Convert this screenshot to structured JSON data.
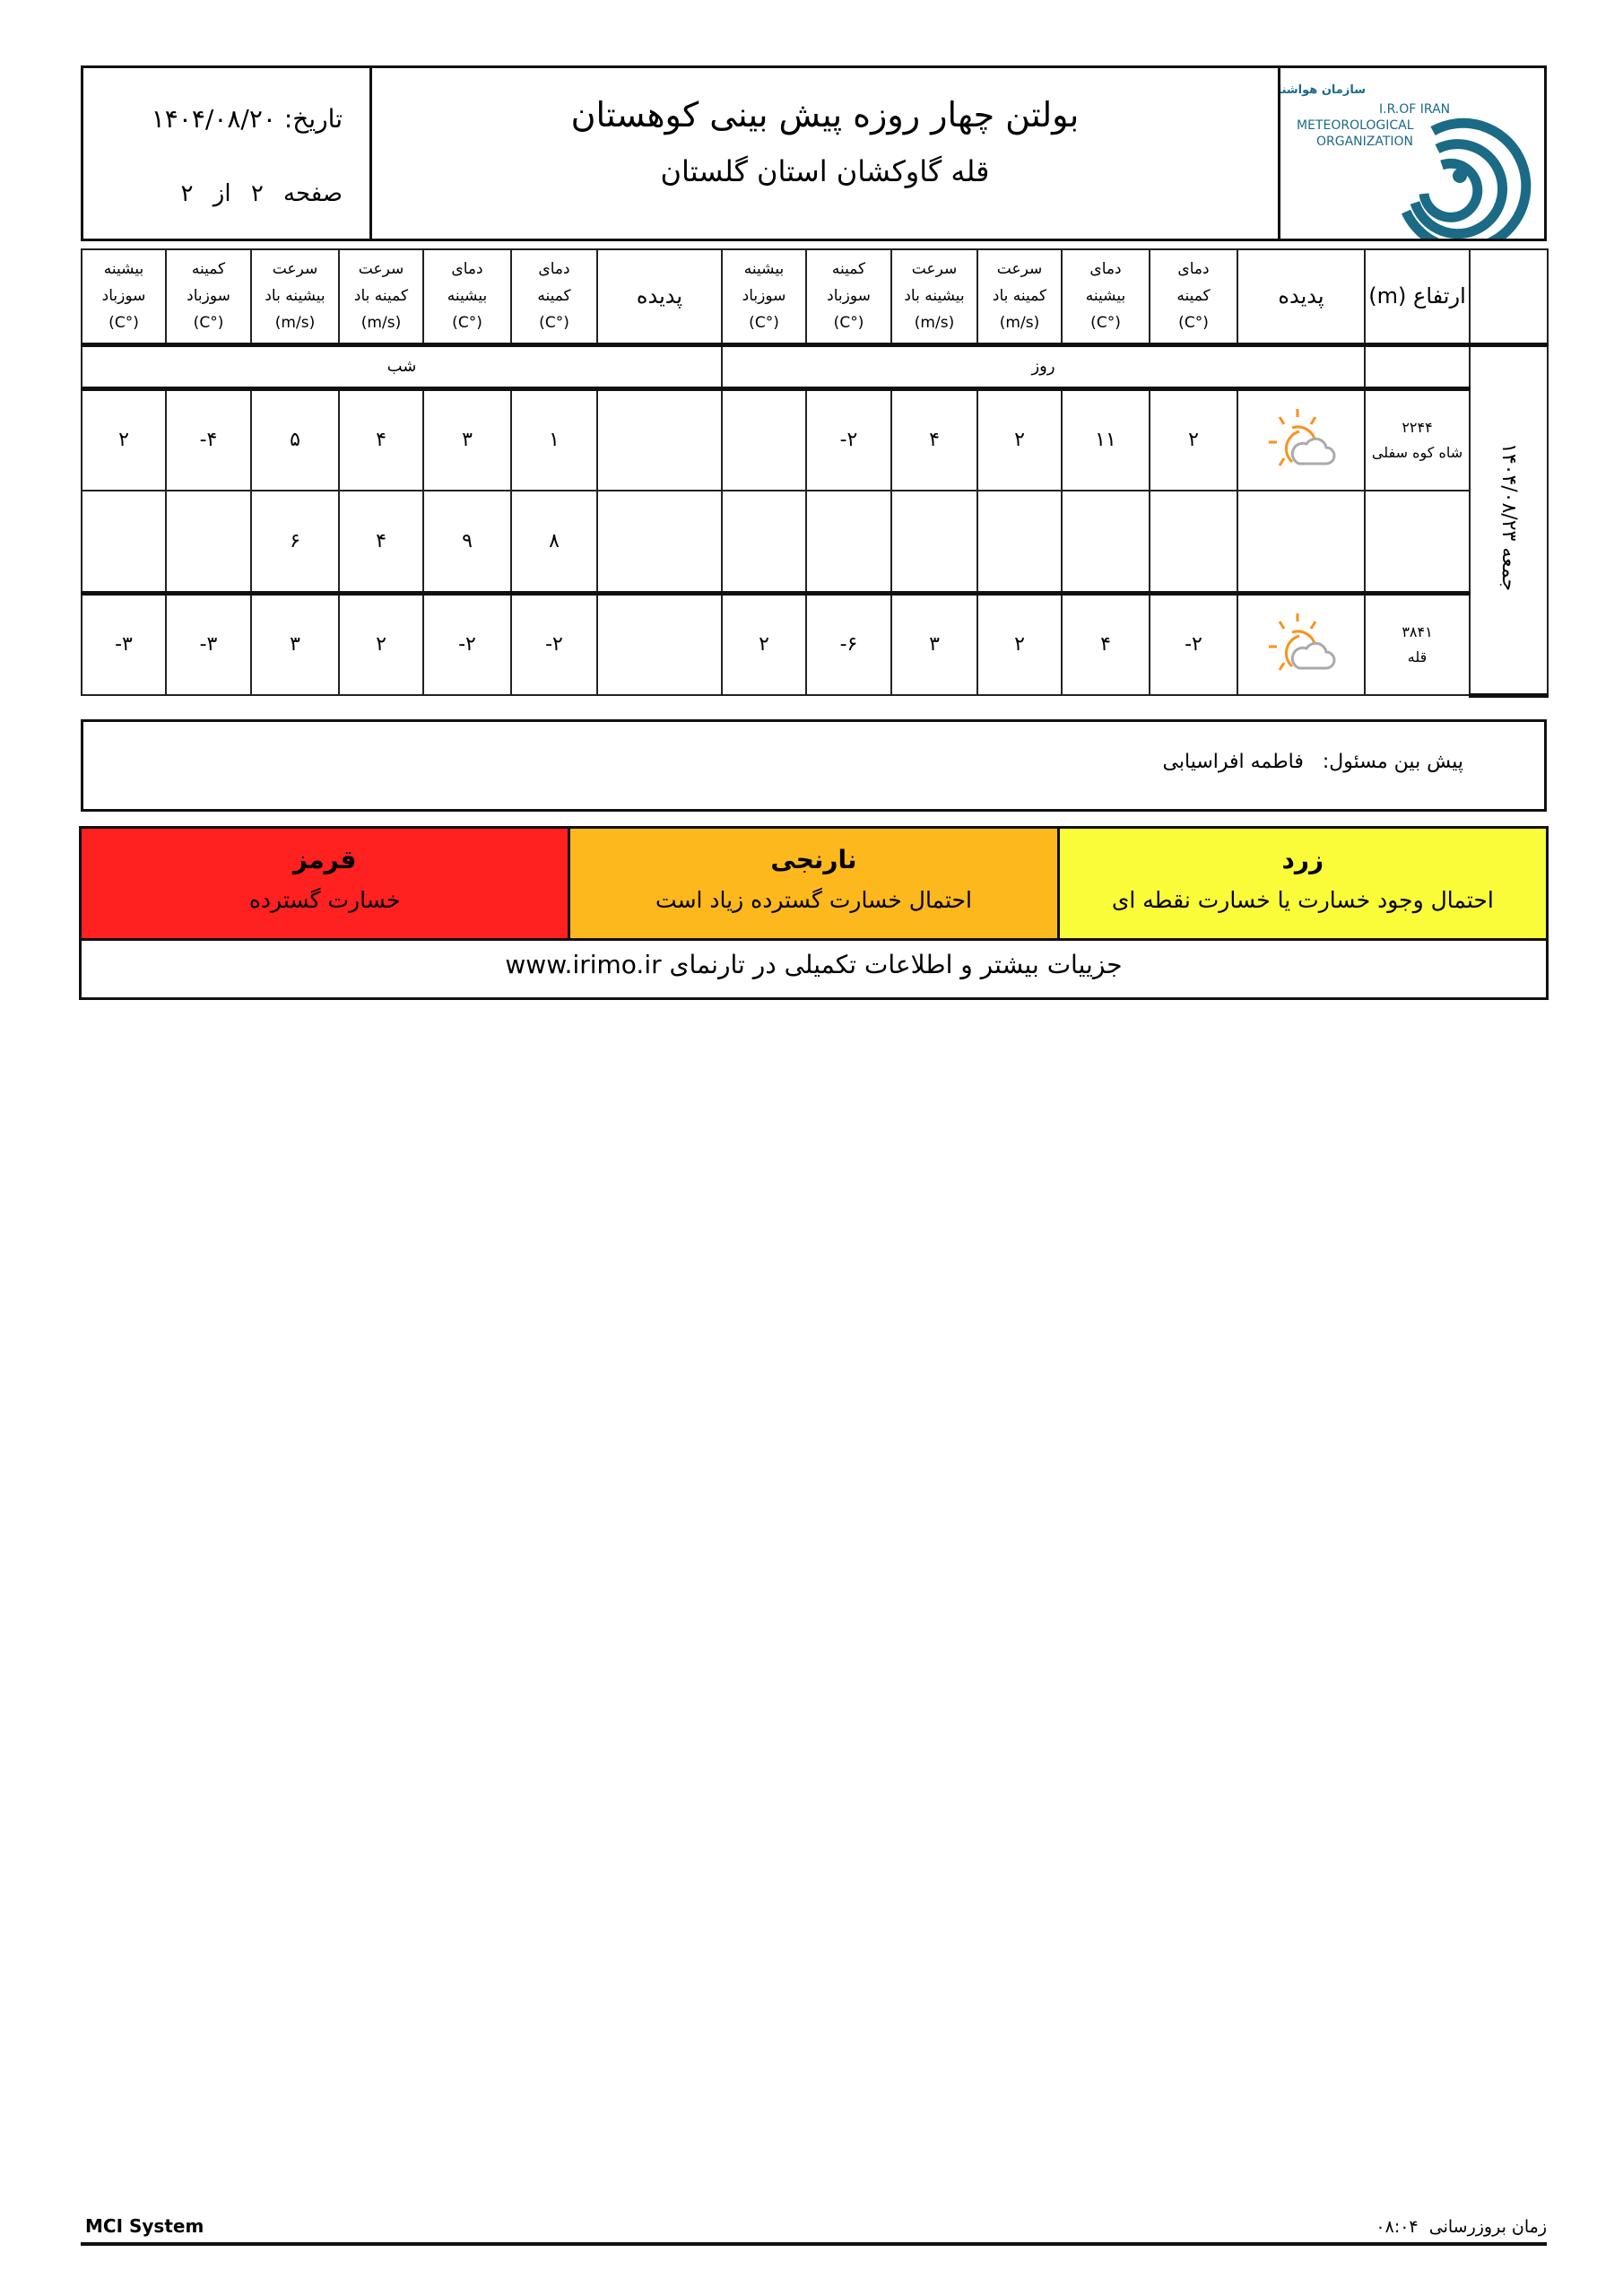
{
  "header": {
    "title": "بولتن چهار روزه پیش بینی کوهستان",
    "subtitle": "قله گاوکشان استان گلستان",
    "date_label": "تاریخ:",
    "date": "۱۴۰۴/۰۸/۲۰",
    "page_label": "صفحه",
    "page_num": "۲",
    "page_of": "از",
    "page_total": "۲",
    "logo_text_fa": "سازمان هواشناسی کشور",
    "logo_text_en1": "I.R.OF IRAN",
    "logo_text_en2": "METEOROLOGICAL",
    "logo_text_en3": "ORGANIZATION",
    "logo_color": "#1b6a86"
  },
  "table": {
    "night_cols": [
      [
        "بیشینه",
        "سوزباد",
        "(°C)"
      ],
      [
        "کمینه",
        "سوزباد",
        "(°C)"
      ],
      [
        "سرعت",
        "بیشینه باد",
        "(m/s)"
      ],
      [
        "سرعت",
        "کمینه باد",
        "(m/s)"
      ],
      [
        "دمای",
        "بیشینه",
        "(°C)"
      ],
      [
        "دمای",
        "کمینه",
        "(°C)"
      ]
    ],
    "phenomenon_label": "پدیده",
    "elevation_label": "ارتفاع (m)",
    "day_cols": [
      [
        "بیشینه",
        "سوزباد",
        "(°C)"
      ],
      [
        "کمینه",
        "سوزباد",
        "(°C)"
      ],
      [
        "سرعت",
        "بیشینه باد",
        "(m/s)"
      ],
      [
        "سرعت",
        "کمینه باد",
        "(m/s)"
      ],
      [
        "دمای",
        "بیشینه",
        "(°C)"
      ],
      [
        "دمای",
        "کمینه",
        "(°C)"
      ]
    ],
    "night_label": "شب",
    "day_label": "روز",
    "day_date": "جمعه ۱۴۰۴/۰۸/۲۳",
    "rows": [
      {
        "elev": "۲۲۴۴",
        "station": "شاه کوه سفلی",
        "icon": "sun-cloud-icon",
        "night": [
          "۲",
          "-۴",
          "۵",
          "۴",
          "۳",
          "۱"
        ],
        "day": [
          "",
          "-۲",
          "۴",
          "۲",
          "۱۱",
          "۲"
        ]
      },
      {
        "elev": "",
        "station": "",
        "icon": "",
        "night": [
          "",
          "",
          "۶",
          "۴",
          "۹",
          "۸"
        ],
        "day": [
          "",
          "",
          "",
          "",
          "",
          ""
        ]
      },
      {
        "elev": "۳۸۴۱",
        "station": "قله",
        "icon": "sun-cloud-icon",
        "night": [
          "-۳",
          "-۳",
          "۳",
          "۲",
          "-۲",
          "-۲"
        ],
        "day": [
          "۲",
          "-۶",
          "۳",
          "۲",
          "۴",
          "-۲"
        ]
      }
    ]
  },
  "forecaster": {
    "label": "پیش بین مسئول:",
    "name": "فاطمه افراسیابی"
  },
  "levels": [
    {
      "name": "قرمز",
      "desc": "خسارت گسترده",
      "color": "#ff2020"
    },
    {
      "name": "نارنجی",
      "desc": "احتمال خسارت گسترده زیاد است",
      "color": "#fdb81e"
    },
    {
      "name": "زرد",
      "desc": "احتمال وجود خسارت یا خسارت نقطه ای",
      "color": "#fafc3a"
    }
  ],
  "more_info": "جزییات بیشتر و اطلاعات تکمیلی در تارنمای www.irimo.ir",
  "footer": {
    "system": "MCI System",
    "update_label": "زمان بروزرسانی",
    "update_time": "۰۸:۰۴"
  }
}
